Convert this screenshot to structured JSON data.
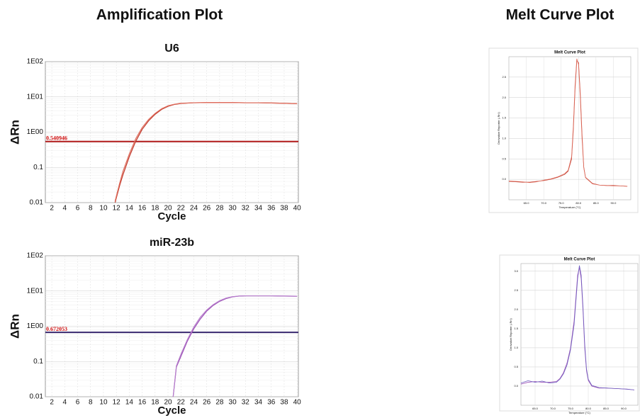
{
  "panel_titles": [
    "Amplification Plot",
    "Melt Curve Plot"
  ],
  "chart_data": [
    {
      "type": "line",
      "title": "U6",
      "xlabel": "Cycle",
      "ylabel": "ΔRn",
      "log_y": true,
      "grid": true,
      "xlim": [
        1,
        40.2
      ],
      "xticks": [
        2,
        4,
        6,
        8,
        10,
        12,
        14,
        16,
        18,
        20,
        22,
        24,
        26,
        28,
        30,
        32,
        34,
        36,
        38,
        40
      ],
      "ylim": [
        0.01,
        100
      ],
      "yticks": [
        0.01,
        0.1,
        {
          "value": 1,
          "label": "1E00"
        },
        {
          "value": 10,
          "label": "1E01"
        },
        {
          "value": 100,
          "label": "1E02"
        }
      ],
      "threshold": 0.540946,
      "threshold_color": "#b01818",
      "threshold_label_color": "#d01010",
      "x": [
        11.8,
        12.5,
        13,
        14,
        15,
        16,
        17,
        18,
        19,
        20,
        21,
        22,
        24,
        26,
        28,
        30,
        32,
        34,
        36,
        38,
        40
      ],
      "series": [
        {
          "color": "#c0392b",
          "values": [
            0.01,
            0.03,
            0.06,
            0.2,
            0.55,
            1.2,
            2.1,
            3.2,
            4.4,
            5.4,
            6.1,
            6.5,
            6.8,
            6.9,
            6.9,
            6.9,
            6.8,
            6.8,
            6.7,
            6.6,
            6.4
          ]
        },
        {
          "color": "#e07060",
          "values": [
            0.011,
            0.035,
            0.075,
            0.24,
            0.65,
            1.35,
            2.3,
            3.4,
            4.6,
            5.6,
            6.2,
            6.6,
            6.8,
            6.9,
            6.9,
            6.9,
            6.8,
            6.8,
            6.7,
            6.6,
            6.4
          ]
        }
      ]
    },
    {
      "type": "line",
      "title": "miR-23b",
      "xlabel": "Cycle",
      "ylabel": "ΔRn",
      "log_y": true,
      "grid": true,
      "xlim": [
        1,
        40.2
      ],
      "xticks": [
        2,
        4,
        6,
        8,
        10,
        12,
        14,
        16,
        18,
        20,
        22,
        24,
        26,
        28,
        30,
        32,
        34,
        36,
        38,
        40
      ],
      "ylim": [
        0.01,
        100
      ],
      "yticks": [
        0.01,
        0.1,
        {
          "value": 1,
          "label": "1E00"
        },
        {
          "value": 10,
          "label": "1E01"
        },
        {
          "value": 100,
          "label": "1E02"
        }
      ],
      "threshold": 0.672053,
      "threshold_color": "#3a2a70",
      "threshold_label_color": "#d01010",
      "x": [
        20.8,
        21.3,
        22,
        23,
        24,
        25,
        26,
        27,
        28,
        29,
        30,
        31,
        32,
        34,
        36,
        38,
        40
      ],
      "series": [
        {
          "color": "#9b4fb5",
          "values": [
            0.01,
            0.07,
            0.14,
            0.38,
            0.85,
            1.6,
            2.7,
            3.9,
            5.1,
            6.1,
            6.8,
            7.2,
            7.3,
            7.3,
            7.3,
            7.2,
            7.1
          ]
        },
        {
          "color": "#b77fcc",
          "values": [
            0.01,
            0.075,
            0.16,
            0.42,
            0.95,
            1.8,
            2.9,
            4.1,
            5.3,
            6.3,
            6.9,
            7.2,
            7.3,
            7.3,
            7.3,
            7.2,
            7.1
          ]
        }
      ]
    },
    {
      "type": "line",
      "title": "Melt Curve Plot",
      "xlabel": "Temperature (°C)",
      "ylabel": "Derivative Reporter (-Rn')",
      "grid": true,
      "xlim": [
        60,
        95
      ],
      "xticks": [
        {
          "value": 65,
          "label": "65.0"
        },
        {
          "value": 70,
          "label": "70.0"
        },
        {
          "value": 75,
          "label": "75.0"
        },
        {
          "value": 80,
          "label": "80.0"
        },
        {
          "value": 85,
          "label": "85.0"
        },
        {
          "value": 90,
          "label": "90.0"
        }
      ],
      "ylim": [
        -0.5,
        3.0
      ],
      "yticks": [
        {
          "value": 0,
          "label": "0.0"
        },
        {
          "value": 0.5,
          "label": "0.5"
        },
        {
          "value": 1,
          "label": "1.0"
        },
        {
          "value": 1.5,
          "label": "1.5"
        },
        {
          "value": 2,
          "label": "2.0"
        },
        {
          "value": 2.5,
          "label": "2.5"
        }
      ],
      "x": [
        60,
        62,
        64,
        66,
        68,
        70,
        72,
        74,
        76,
        77,
        78,
        78.5,
        79,
        79.5,
        80,
        80.5,
        81,
        81.5,
        82,
        84,
        86,
        88,
        90,
        92,
        94
      ],
      "series": [
        {
          "color": "#c0392b",
          "values": [
            -0.05,
            -0.06,
            -0.07,
            -0.07,
            -0.05,
            -0.03,
            0.0,
            0.05,
            0.12,
            0.2,
            0.5,
            1.2,
            2.2,
            2.9,
            2.85,
            2.1,
            1.1,
            0.3,
            0.05,
            -0.1,
            -0.14,
            -0.15,
            -0.15,
            -0.16,
            -0.17
          ]
        },
        {
          "color": "#e07060",
          "values": [
            -0.04,
            -0.05,
            -0.06,
            -0.08,
            -0.06,
            -0.02,
            0.01,
            0.06,
            0.14,
            0.22,
            0.55,
            1.3,
            2.3,
            2.95,
            2.8,
            2.0,
            1.0,
            0.28,
            0.04,
            -0.11,
            -0.14,
            -0.15,
            -0.16,
            -0.16,
            -0.17
          ]
        }
      ]
    },
    {
      "type": "line",
      "title": "Melt Curve Plot",
      "xlabel": "Temperature (°C)",
      "ylabel": "Derivative Reporter (-Rn')",
      "grid": true,
      "xlim": [
        61,
        94
      ],
      "xticks": [
        {
          "value": 65,
          "label": "65.0"
        },
        {
          "value": 70,
          "label": "70.0"
        },
        {
          "value": 75,
          "label": "75.0"
        },
        {
          "value": 80,
          "label": "80.0"
        },
        {
          "value": 85,
          "label": "85.0"
        },
        {
          "value": 90,
          "label": "90.0"
        }
      ],
      "ylim": [
        -0.5,
        3.2
      ],
      "yticks": [
        {
          "value": 0,
          "label": "0.0"
        },
        {
          "value": 0.5,
          "label": "0.5"
        },
        {
          "value": 1,
          "label": "1.0"
        },
        {
          "value": 1.5,
          "label": "1.5"
        },
        {
          "value": 2,
          "label": "2.0"
        },
        {
          "value": 2.5,
          "label": "2.5"
        },
        {
          "value": 3,
          "label": "3.0"
        }
      ],
      "x": [
        61,
        63,
        65,
        67,
        69,
        71,
        72,
        73,
        74,
        75,
        76,
        76.5,
        77,
        77.5,
        78,
        78.5,
        79,
        79.5,
        80,
        81,
        83,
        85,
        87,
        89,
        91,
        93
      ],
      "series": [
        {
          "color": "#9b4fb5",
          "values": [
            0.05,
            0.1,
            0.12,
            0.1,
            0.1,
            0.12,
            0.2,
            0.35,
            0.6,
            1.0,
            1.7,
            2.3,
            2.9,
            3.1,
            2.8,
            2.0,
            1.0,
            0.4,
            0.15,
            0.0,
            -0.05,
            -0.05,
            -0.06,
            -0.07,
            -0.08,
            -0.1
          ]
        },
        {
          "color": "#6f5fc0",
          "values": [
            0.08,
            0.14,
            0.1,
            0.13,
            0.08,
            0.1,
            0.18,
            0.32,
            0.55,
            0.95,
            1.6,
            2.2,
            2.8,
            3.15,
            2.9,
            2.1,
            1.1,
            0.45,
            0.18,
            0.02,
            -0.04,
            -0.05,
            -0.06,
            -0.07,
            -0.08,
            -0.1
          ]
        }
      ]
    }
  ]
}
